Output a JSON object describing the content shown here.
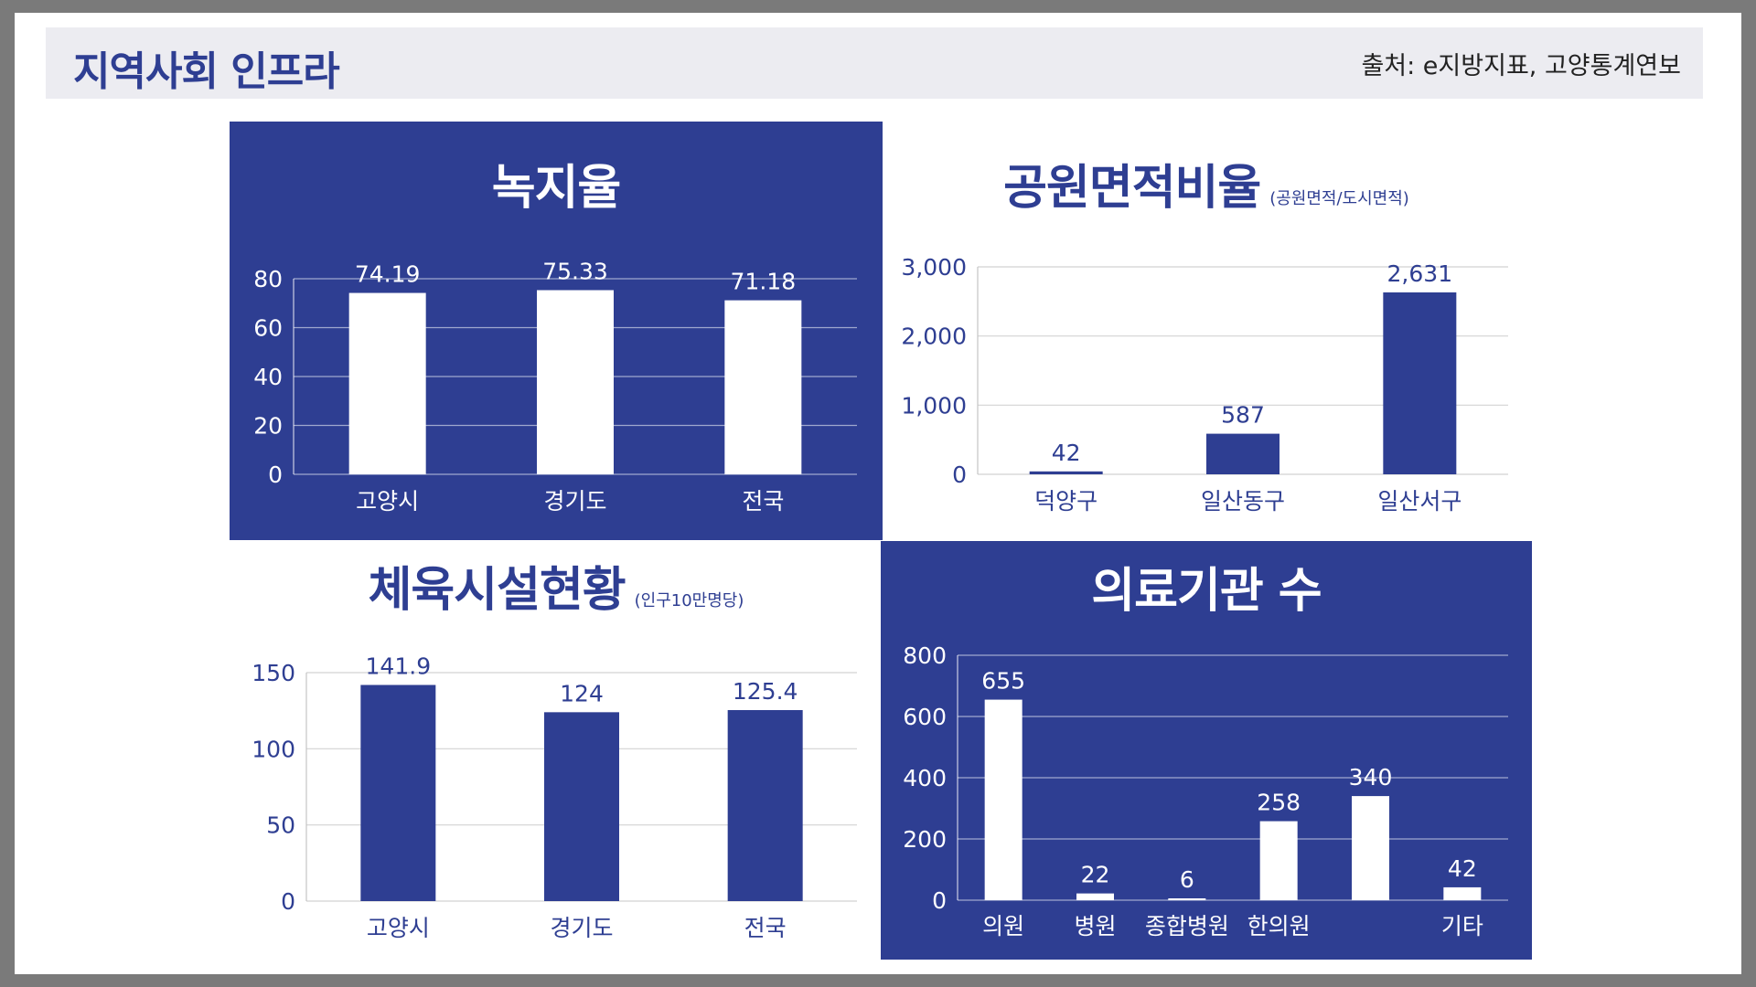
{
  "header": {
    "title": "지역사회 인프라",
    "source": "출처:  e지방지표, 고양통계연보"
  },
  "colors": {
    "brand": "#2e3e92",
    "header_bg": "#ececf1",
    "white": "#ffffff",
    "frame": "#7a7a7a"
  },
  "chart_data": [
    {
      "id": "green",
      "type": "bar",
      "title": "녹지율",
      "subtitle": "",
      "categories": [
        "고양시",
        "경기도",
        "전국"
      ],
      "values": [
        74.19,
        75.33,
        71.18
      ],
      "value_labels": [
        "74.19",
        "75.33",
        "71.18"
      ],
      "yticks": [
        0,
        20,
        40,
        60,
        80
      ],
      "ytick_labels": [
        "0",
        "20",
        "40",
        "60",
        "80"
      ],
      "ylim": [
        0,
        80
      ],
      "grid": true,
      "theme": "dark"
    },
    {
      "id": "park",
      "type": "bar",
      "title": "공원면적비율",
      "subtitle": "(공원면적/도시면적)",
      "categories": [
        "덕양구",
        "일산동구",
        "일산서구"
      ],
      "values": [
        42,
        587,
        2631
      ],
      "value_labels": [
        "42",
        "587",
        "2,631"
      ],
      "yticks": [
        0,
        1000,
        2000,
        3000
      ],
      "ytick_labels": [
        "0",
        "1,000",
        "2,000",
        "3,000"
      ],
      "ylim": [
        0,
        3000
      ],
      "grid": true,
      "theme": "light"
    },
    {
      "id": "sports",
      "type": "bar",
      "title": "체육시설현황",
      "subtitle": "(인구10만명당)",
      "categories": [
        "고양시",
        "경기도",
        "전국"
      ],
      "values": [
        141.9,
        124,
        125.4
      ],
      "value_labels": [
        "141.9",
        "124",
        "125.4"
      ],
      "yticks": [
        0,
        50,
        100,
        150
      ],
      "ytick_labels": [
        "0",
        "50",
        "100",
        "150"
      ],
      "ylim": [
        0,
        150
      ],
      "grid": true,
      "theme": "light"
    },
    {
      "id": "medical",
      "type": "bar",
      "title": "의료기관 수",
      "subtitle": "",
      "categories": [
        "의원",
        "병원",
        "종합병원",
        "한의원",
        "",
        "기타"
      ],
      "values": [
        655,
        22,
        6,
        258,
        340,
        42
      ],
      "value_labels": [
        "655",
        "22",
        "6",
        "258",
        "340",
        "42"
      ],
      "yticks": [
        0,
        200,
        400,
        600,
        800
      ],
      "ytick_labels": [
        "0",
        "200",
        "400",
        "600",
        "800"
      ],
      "ylim": [
        0,
        800
      ],
      "grid": true,
      "theme": "dark"
    }
  ]
}
